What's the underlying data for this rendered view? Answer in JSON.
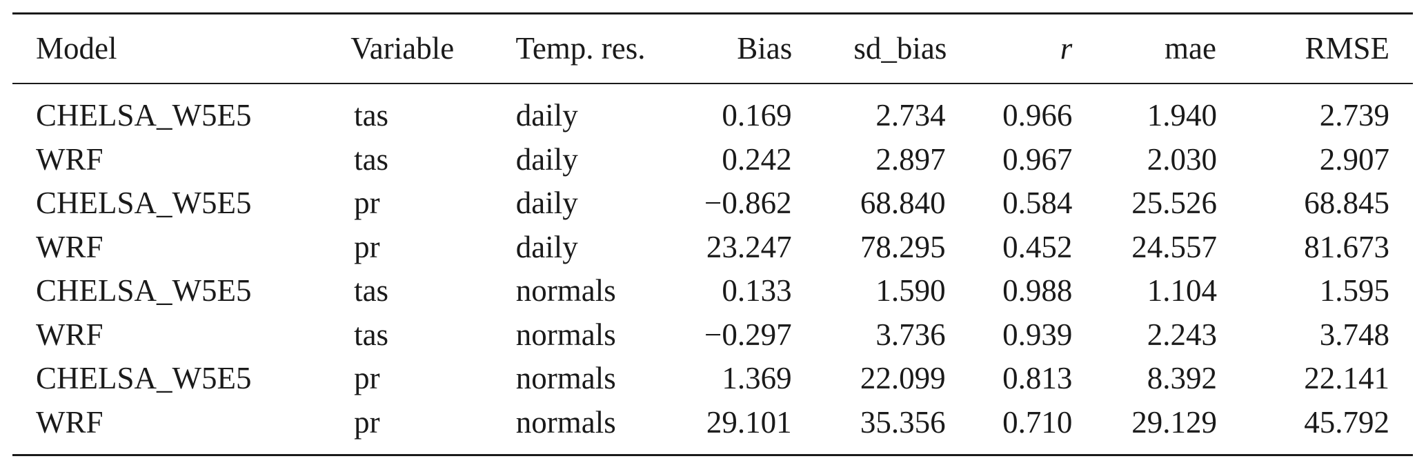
{
  "table": {
    "headers": {
      "model": "Model",
      "variable": "Variable",
      "temp_res": "Temp. res.",
      "bias": "Bias",
      "sd_bias": "sd_bias",
      "r": "r",
      "mae": "mae",
      "rmse": "RMSE"
    },
    "rows": [
      {
        "model": "CHELSA_W5E5",
        "variable": "tas",
        "temp_res": "daily",
        "bias": "0.169",
        "sd_bias": "2.734",
        "r": "0.966",
        "mae": "1.940",
        "rmse": "2.739"
      },
      {
        "model": "WRF",
        "variable": "tas",
        "temp_res": "daily",
        "bias": "0.242",
        "sd_bias": "2.897",
        "r": "0.967",
        "mae": "2.030",
        "rmse": "2.907"
      },
      {
        "model": "CHELSA_W5E5",
        "variable": "pr",
        "temp_res": "daily",
        "bias": "−0.862",
        "sd_bias": "68.840",
        "r": "0.584",
        "mae": "25.526",
        "rmse": "68.845"
      },
      {
        "model": "WRF",
        "variable": "pr",
        "temp_res": "daily",
        "bias": "23.247",
        "sd_bias": "78.295",
        "r": "0.452",
        "mae": "24.557",
        "rmse": "81.673"
      },
      {
        "model": "CHELSA_W5E5",
        "variable": "tas",
        "temp_res": "normals",
        "bias": "0.133",
        "sd_bias": "1.590",
        "r": "0.988",
        "mae": "1.104",
        "rmse": "1.595"
      },
      {
        "model": "WRF",
        "variable": "tas",
        "temp_res": "normals",
        "bias": "−0.297",
        "sd_bias": "3.736",
        "r": "0.939",
        "mae": "2.243",
        "rmse": "3.748"
      },
      {
        "model": "CHELSA_W5E5",
        "variable": "pr",
        "temp_res": "normals",
        "bias": "1.369",
        "sd_bias": "22.099",
        "r": "0.813",
        "mae": "8.392",
        "rmse": "22.141"
      },
      {
        "model": "WRF",
        "variable": "pr",
        "temp_res": "normals",
        "bias": "29.101",
        "sd_bias": "35.356",
        "r": "0.710",
        "mae": "29.129",
        "rmse": "45.792"
      }
    ]
  }
}
